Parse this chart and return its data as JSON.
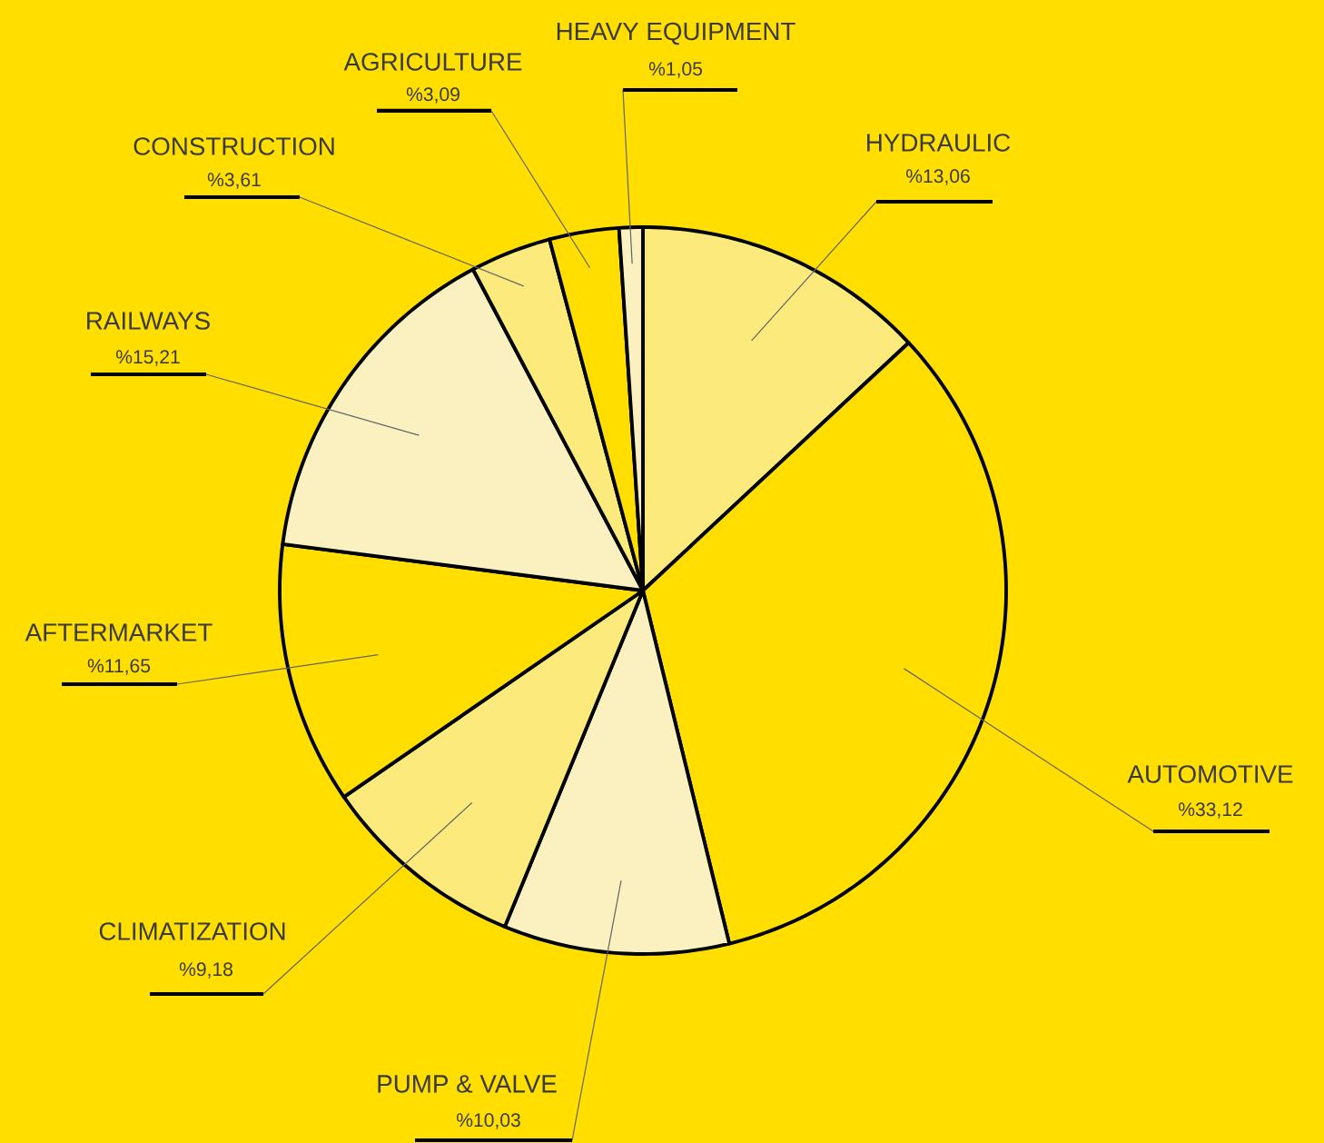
{
  "chart_data": {
    "type": "pie",
    "categories": [
      "HYDRAULIC",
      "AUTOMOTIVE",
      "PUMP & VALVE",
      "CLIMATIZATION",
      "AFTERMARKET",
      "RAILWAYS",
      "CONSTRUCTION",
      "AGRICULTURE",
      "HEAVY EQUIPMENT"
    ],
    "values": [
      13.06,
      33.12,
      10.03,
      9.18,
      11.65,
      15.21,
      3.61,
      3.09,
      1.05
    ],
    "value_labels": [
      "%13,06",
      "%33,12",
      "%10,03",
      "%9,18",
      "%11,65",
      "%15,21",
      "%3,61",
      "%3,09",
      "%1,05"
    ],
    "colors": [
      "#fcea7c",
      "#ffde00",
      "#fbf1c0",
      "#fcea7c",
      "#ffde00",
      "#fbf1c0",
      "#fcea7c",
      "#ffde00",
      "#fbf1c0"
    ]
  }
}
